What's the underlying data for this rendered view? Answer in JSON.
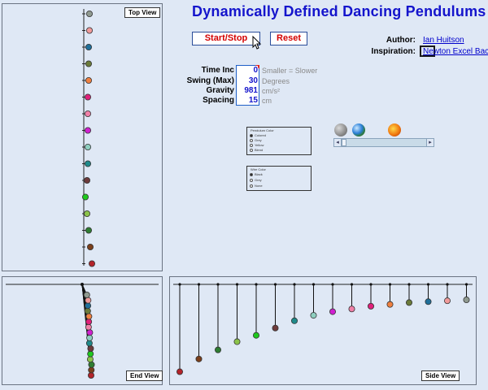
{
  "header": {
    "title": "Dynamically Defined Dancing Pendulums",
    "start_stop_label": "Start/Stop",
    "reset_label": "Reset"
  },
  "credits": {
    "author_label": "Author:",
    "author_name": "Ian Huitson",
    "inspiration_label": "Inspiration:",
    "inspiration_name": "Newton Excel Bach"
  },
  "params": {
    "time_inc": {
      "label": "Time Inc",
      "value": "0",
      "unit": "Smaller = Slower"
    },
    "swing": {
      "label": "Swing (Max)",
      "value": "30",
      "unit": "Degrees"
    },
    "gravity": {
      "label": "Gravity",
      "value": "981",
      "unit": "cm/s²"
    },
    "spacing": {
      "label": "Spacing",
      "value": "15",
      "unit": "cm"
    }
  },
  "pendulum_color": {
    "title": "Pendulum Color",
    "options": [
      "Colored",
      "Grey",
      "Yellow",
      "Blend"
    ],
    "selected": "Colored"
  },
  "wire_color": {
    "title": "Wire Color",
    "options": [
      "Black",
      "Grey",
      "None"
    ],
    "selected": "Black"
  },
  "gravity_presets": [
    "moon-icon",
    "earth-icon",
    "sun-icon"
  ],
  "panels": {
    "top_view_label": "Top View",
    "end_view_label": "End View",
    "side_view_label": "Side View"
  },
  "pendulums": [
    {
      "color": "#b3242b",
      "top_offset": 10,
      "side_drop": 0.96
    },
    {
      "color": "#7b3f1b",
      "top_offset": 8,
      "side_drop": 0.82
    },
    {
      "color": "#2e7d32",
      "top_offset": 6,
      "side_drop": 0.72
    },
    {
      "color": "#8bc34a",
      "top_offset": 4,
      "side_drop": 0.63
    },
    {
      "color": "#1ec81e",
      "top_offset": 2,
      "side_drop": 0.56
    },
    {
      "color": "#6d3b3b",
      "top_offset": 4,
      "side_drop": 0.48
    },
    {
      "color": "#1f8a8a",
      "top_offset": 5,
      "side_drop": 0.4
    },
    {
      "color": "#8ecfc0",
      "top_offset": 5,
      "side_drop": 0.34
    },
    {
      "color": "#d020d0",
      "top_offset": 5,
      "side_drop": 0.3
    },
    {
      "color": "#f080a8",
      "top_offset": 5,
      "side_drop": 0.27
    },
    {
      "color": "#e0207a",
      "top_offset": 5,
      "side_drop": 0.24
    },
    {
      "color": "#f08040",
      "top_offset": 6,
      "side_drop": 0.22
    },
    {
      "color": "#6b7b3a",
      "top_offset": 6,
      "side_drop": 0.2
    },
    {
      "color": "#1f6f9a",
      "top_offset": 6,
      "side_drop": 0.19
    },
    {
      "color": "#f09a9a",
      "top_offset": 7,
      "side_drop": 0.18
    },
    {
      "color": "#909a90",
      "top_offset": 7,
      "side_drop": 0.17
    }
  ]
}
